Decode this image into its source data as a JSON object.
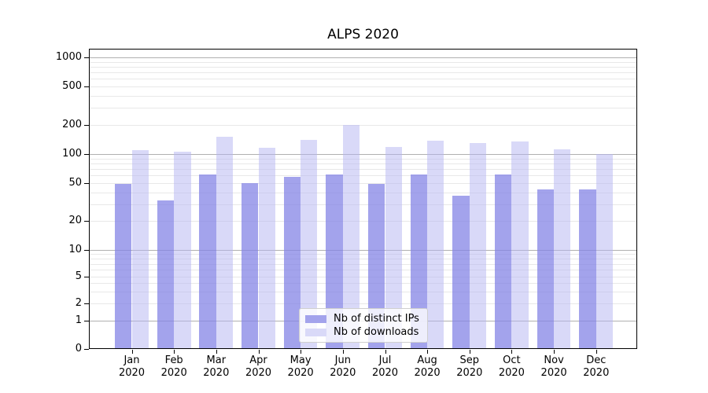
{
  "title": "ALPS 2020",
  "chart_data": {
    "type": "bar",
    "title": "ALPS 2020",
    "categories": [
      "Jan 2020",
      "Feb 2020",
      "Mar 2020",
      "Apr 2020",
      "May 2020",
      "Jun 2020",
      "Jul 2020",
      "Aug 2020",
      "Sep 2020",
      "Oct 2020",
      "Nov 2020",
      "Dec 2020"
    ],
    "series": [
      {
        "name": "Nb of distinct IPs",
        "color": "#a3a3ec",
        "fill": "rgba(132,132,230,0.75)",
        "values": [
          49,
          33,
          61,
          50,
          58,
          61,
          49,
          61,
          37,
          62,
          43,
          43
        ]
      },
      {
        "name": "Nb of downloads",
        "color": "#d9d9f8",
        "fill": "rgba(179,179,241,0.5)",
        "values": [
          110,
          106,
          152,
          116,
          139,
          199,
          119,
          137,
          129,
          134,
          113,
          100
        ]
      }
    ],
    "yscale": "symlog",
    "yticks": [
      0,
      1,
      2,
      5,
      10,
      20,
      50,
      100,
      200,
      500,
      1000
    ],
    "ylim": [
      0,
      1000
    ],
    "xlabel": "",
    "ylabel": "",
    "grid": true,
    "legend_position": "lower center",
    "bar_arrangement": "grouped side-by-side"
  },
  "colors": {
    "background": "#ffffff",
    "axis": "#000000",
    "grid_major": "#b0b0b0",
    "grid_minor": "#e8e8e8",
    "legend_border": "#cfcfcf"
  }
}
